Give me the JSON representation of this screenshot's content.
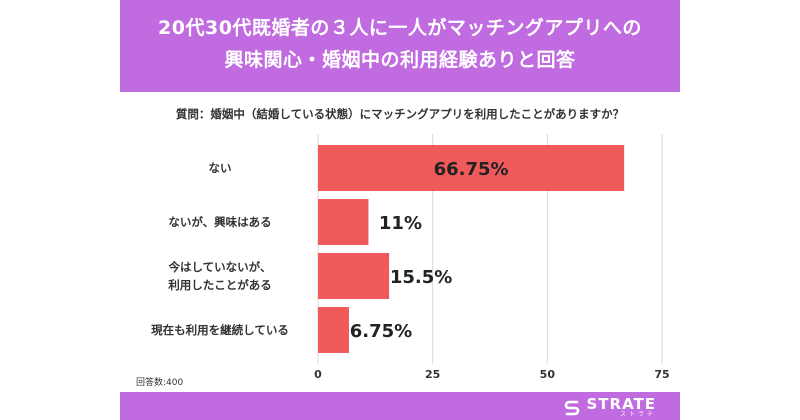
{
  "header": {
    "title_line1": "20代30代既婚者の３人に一人がマッチングアプリへの",
    "title_line2": "興味関心・婚姻中の利用経験ありと回答"
  },
  "question": "質問：婚姻中（結婚している状態）にマッチングアプリを利用したことがありますか？",
  "respondents": "回答数:400",
  "brand": {
    "name": "STRATE",
    "sub": "ストラテ"
  },
  "colors": {
    "header": "#c06ce0",
    "bar": "#f05a5a",
    "grid": "#d9d9d9"
  },
  "chart_data": {
    "type": "bar",
    "orientation": "horizontal",
    "categories": [
      [
        "ない"
      ],
      [
        "ないが、興味はある"
      ],
      [
        "今はしていないが、",
        "利用したことがある"
      ],
      [
        "現在も利用を継続している"
      ]
    ],
    "values": [
      66.75,
      11,
      15.5,
      6.75
    ],
    "value_labels": [
      "66.75%",
      "11%",
      "15.5%",
      "6.75%"
    ],
    "xlim": [
      0,
      75
    ],
    "xticks": [
      0,
      25,
      50,
      75
    ],
    "xtick_labels": [
      "0",
      "25",
      "50",
      "75"
    ],
    "grid": true
  }
}
